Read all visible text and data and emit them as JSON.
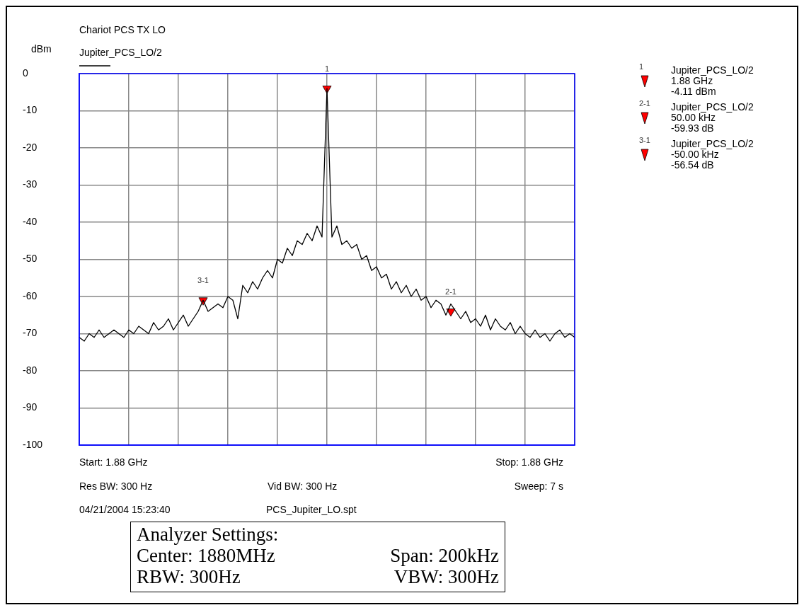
{
  "chart_data": {
    "type": "line",
    "title": "Chariot PCS TX LO",
    "ylabel": "dBm",
    "categories": [
      null,
      null,
      null,
      null,
      null,
      null,
      null,
      null,
      null,
      null,
      null,
      null,
      null,
      null,
      null,
      null,
      null,
      null,
      null,
      null,
      null,
      null,
      null,
      null,
      null,
      null,
      null,
      null,
      null,
      null,
      null,
      null,
      null,
      null,
      null,
      null,
      null,
      null,
      null,
      null,
      null,
      null,
      null,
      null,
      null,
      null,
      null,
      null,
      null,
      null,
      null,
      null,
      null,
      null,
      null,
      null,
      null,
      null,
      null,
      null,
      null,
      null,
      null,
      null,
      null,
      null,
      null,
      null,
      null,
      null,
      null,
      null,
      null,
      null,
      null,
      null,
      null,
      null,
      null,
      null,
      null,
      null,
      null,
      null,
      null,
      null,
      null,
      null,
      null,
      null,
      null,
      null,
      null,
      null,
      null,
      null,
      null,
      null,
      null,
      null,
      null
    ],
    "series": [
      {
        "name": "Jupiter_PCS_LO/2",
        "color": "#000000",
        "values": [
          -71,
          -72,
          -70,
          -71,
          -69,
          -71,
          -70,
          -69,
          -70,
          -71,
          -69,
          -70,
          -68,
          -69,
          -70,
          -67,
          -69,
          -68,
          -66,
          -69,
          -67,
          -65,
          -68,
          -66,
          -64,
          -61,
          -64,
          -63,
          -62,
          -63,
          -60,
          -61,
          -66,
          -57,
          -59,
          -56,
          -58,
          -55,
          -53,
          -55,
          -50,
          -51,
          -47,
          -49,
          -45,
          -46,
          -43,
          -45,
          -41,
          -44,
          -4,
          -44,
          -41,
          -46,
          -45,
          -47,
          -46,
          -50,
          -49,
          -53,
          -52,
          -55,
          -54,
          -58,
          -56,
          -59,
          -57,
          -60,
          -58,
          -61,
          -60,
          -63,
          -61,
          -62,
          -65,
          -62,
          -64,
          -66,
          -64,
          -67,
          -66,
          -68,
          -65,
          -69,
          -66,
          -68,
          -69,
          -67,
          -70,
          -68,
          -70,
          -71,
          -69,
          -71,
          -70,
          -72,
          -70,
          -69,
          -71,
          -70,
          -71
        ]
      },
      {
        "type": "scatter",
        "color": "#ff0000",
        "values": [
          null,
          null,
          null,
          null,
          null,
          null,
          null,
          null,
          null,
          null,
          null,
          null,
          null,
          null,
          null,
          null,
          null,
          null,
          null,
          null,
          null,
          null,
          null,
          null,
          null,
          -61,
          null,
          null,
          null,
          null,
          null,
          null,
          null,
          null,
          null,
          null,
          null,
          null,
          null,
          null,
          null,
          null,
          null,
          null,
          null,
          null,
          null,
          null,
          null,
          null,
          -4,
          null,
          null,
          null,
          null,
          null,
          null,
          null,
          null,
          null,
          null,
          null,
          null,
          null,
          null,
          null,
          null,
          null,
          null,
          null,
          null,
          null,
          null,
          null,
          null,
          -64,
          null,
          null,
          null,
          null,
          null,
          null,
          null,
          null,
          null,
          null,
          null,
          null,
          null,
          null,
          null,
          null,
          null,
          null,
          null,
          null,
          null,
          null,
          null,
          null,
          null
        ],
        "marker": "triangle"
      }
    ],
    "ylim": [
      -100,
      0
    ],
    "yticks": [
      0,
      -10,
      -20,
      -30,
      -40,
      -50,
      -60,
      -70,
      -80,
      -90,
      -100
    ],
    "grid": true,
    "legend": "top left",
    "tick_labels": "y",
    "marker": "none",
    "line_style": "solid",
    "annotations": [
      "1",
      "Jupiter_PCS_LO/2\n1.88 GHz\n-4.11 dBm",
      "2-1",
      "Jupiter_PCS_LO/2\n50.00 kHz\n-59.93 dB",
      "3-1",
      "Jupiter_PCS_LO/2\n-50.00 kHz\n-56.54 dB",
      "Start: 1.88 GHz",
      "Stop: 1.88 GHz",
      "Res BW: 300 Hz",
      "Vid BW: 300 Hz",
      "Sweep: 7 s",
      "04/21/2004 15:23:40",
      "PCS_Jupiter_LO.spt",
      "Analyzer Settings:",
      "Center: 1880MHz",
      "Span: 200kHz",
      "RBW: 300Hz",
      "VBW: 300Hz",
      {
        "text": "1",
        "y": -4
      },
      {
        "text": "2-1",
        "y": -64
      },
      {
        "text": "3-1",
        "y": -61
      }
    ]
  }
}
